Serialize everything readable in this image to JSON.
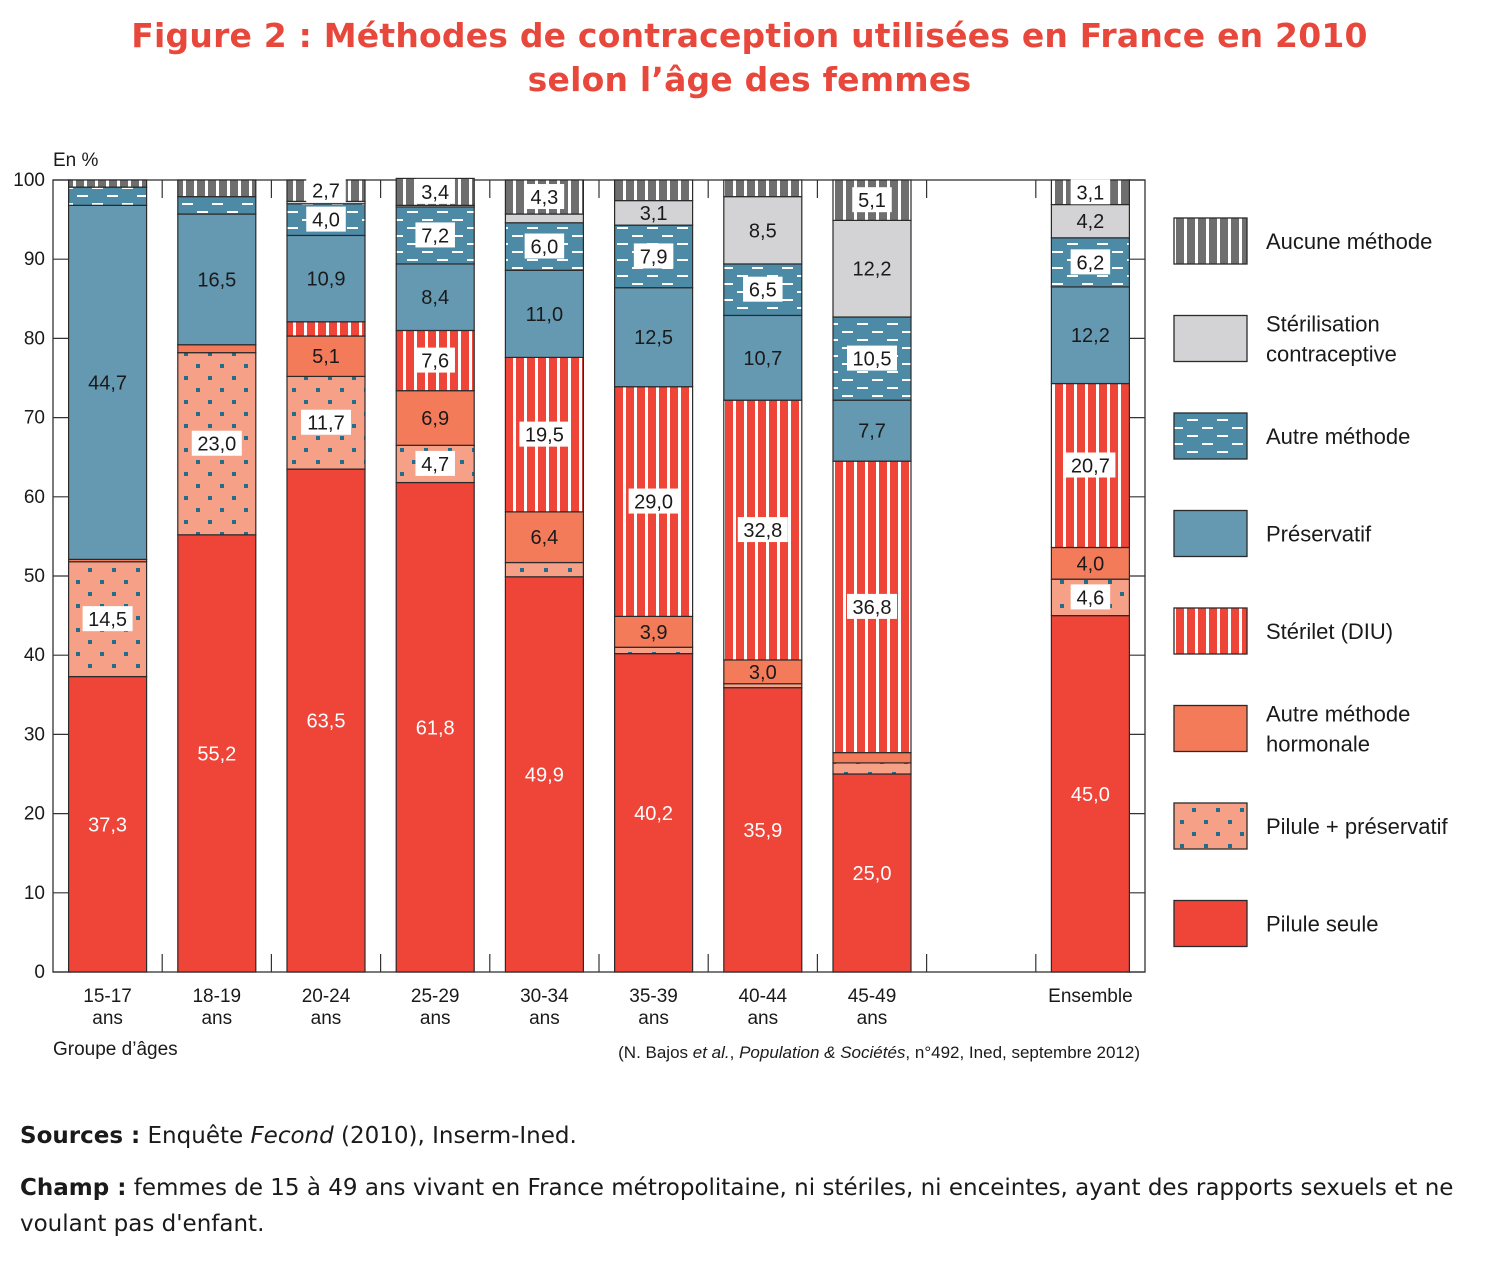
{
  "title_line1": "Figure 2 : Méthodes de contraception utilisées en France en 2010",
  "title_line2": "selon l’âge des femmes",
  "footer": {
    "sources_label": "Sources :",
    "sources_pre": " Enquête ",
    "sources_italic": "Fecond",
    "sources_post": " (2010), Inserm-Ined.",
    "champ_label": "Champ :",
    "champ_text": " femmes de 15 à 49 ans vivant en France métropolitaine, ni stériles, ni enceintes, ayant des rapports sexuels et ne voulant pas d'enfant."
  },
  "colors": {
    "pilule_seule": "#ef4438",
    "pilule_preservatif": "#f6a187",
    "autre_hormonale": "#f37b59",
    "sterilet": "#ef4438",
    "preservatif": "#6499b1",
    "autre_methode": "#4d8aa6",
    "sterilisation": "#d3d3d5",
    "aucune": "#6e6e6e",
    "title": "#e8473b"
  },
  "chart_data": {
    "type": "bar",
    "stacked": true,
    "title": "Figure 2 : Méthodes de contraception utilisées en France en 2010 selon l’âge des femmes",
    "ylabel": "En %",
    "xlabel": "Groupe d’âges",
    "ylim": [
      0,
      100
    ],
    "yticks": [
      0,
      10,
      20,
      30,
      40,
      50,
      60,
      70,
      80,
      90,
      100
    ],
    "grid": false,
    "legend_position": "right",
    "citation": "(N. Bajos et al., Population & Sociétés, n°492, Ined, septembre 2012)",
    "citation_parts": [
      "(N. Bajos ",
      "et al.",
      ", ",
      "Population & Sociétés",
      ", n°492, Ined, septembre 2012)"
    ],
    "categories": [
      {
        "line1": "15-17",
        "line2": "ans"
      },
      {
        "line1": "18-19",
        "line2": "ans"
      },
      {
        "line1": "20-24",
        "line2": "ans"
      },
      {
        "line1": "25-29",
        "line2": "ans"
      },
      {
        "line1": "30-34",
        "line2": "ans"
      },
      {
        "line1": "35-39",
        "line2": "ans"
      },
      {
        "line1": "40-44",
        "line2": "ans"
      },
      {
        "line1": "45-49",
        "line2": "ans"
      },
      null,
      {
        "line1": "Ensemble",
        "line2": ""
      }
    ],
    "series": [
      {
        "key": "pilule_seule",
        "name": "Pilule seule",
        "pattern": "solid",
        "values": [
          37.3,
          55.2,
          63.5,
          61.8,
          49.9,
          40.2,
          35.9,
          25.0,
          null,
          45.0
        ],
        "labels": [
          "37,3",
          "55,2",
          "63,5",
          "61,8",
          "49,9",
          "40,2",
          "35,9",
          "25,0",
          null,
          "45,0"
        ],
        "label_style": "white-text"
      },
      {
        "key": "pilule_preservatif",
        "name": "Pilule + préservatif",
        "pattern": "dots",
        "values": [
          14.5,
          23.0,
          11.7,
          4.7,
          1.8,
          0.8,
          0.5,
          1.4,
          null,
          4.6
        ],
        "labels": [
          "14,5",
          "23,0",
          "11,7",
          "4,7",
          null,
          null,
          null,
          null,
          null,
          "4,6"
        ],
        "label_style": "boxed"
      },
      {
        "key": "autre_hormonale",
        "name": "Autre méthode hormonale",
        "pattern": "solid",
        "values": [
          0.3,
          1.0,
          5.1,
          6.9,
          6.4,
          3.9,
          3.0,
          1.3,
          null,
          4.0
        ],
        "labels": [
          null,
          null,
          "5,1",
          "6,9",
          "6,4",
          "3,9",
          "3,0",
          null,
          null,
          "4,0"
        ],
        "label_style": "plain"
      },
      {
        "key": "sterilet",
        "name": "Stérilet (DIU)",
        "pattern": "vstripes-white",
        "values": [
          0.0,
          0.0,
          1.8,
          7.6,
          19.5,
          29.0,
          32.8,
          36.8,
          null,
          20.7
        ],
        "labels": [
          null,
          null,
          null,
          "7,6",
          "19,5",
          "29,0",
          "32,8",
          "36,8",
          null,
          "20,7"
        ],
        "label_style": "boxed"
      },
      {
        "key": "preservatif",
        "name": "Préservatif",
        "pattern": "solid",
        "values": [
          44.7,
          16.5,
          10.9,
          8.4,
          11.0,
          12.5,
          10.7,
          7.7,
          null,
          12.2
        ],
        "labels": [
          "44,7",
          "16,5",
          "10,9",
          "8,4",
          "11,0",
          "12,5",
          "10,7",
          "7,7",
          null,
          "12,2"
        ],
        "label_style": "plain"
      },
      {
        "key": "autre_methode",
        "name": "Autre méthode",
        "pattern": "dashes",
        "values": [
          2.3,
          2.2,
          4.0,
          7.2,
          6.0,
          7.9,
          6.5,
          10.5,
          null,
          6.2
        ],
        "labels": [
          null,
          null,
          "4,0",
          "7,2",
          "6,0",
          "7,9",
          "6,5",
          "10,5",
          null,
          "6,2"
        ],
        "label_style": "boxed"
      },
      {
        "key": "sterilisation",
        "name": "Stérilisation contraceptive",
        "pattern": "solid",
        "values": [
          0.0,
          0.0,
          0.3,
          0.2,
          1.1,
          3.1,
          8.5,
          12.2,
          null,
          4.2
        ],
        "labels": [
          null,
          null,
          null,
          null,
          null,
          "3,1",
          "8,5",
          "12,2",
          null,
          "4,2"
        ],
        "label_style": "plain"
      },
      {
        "key": "aucune",
        "name": "Aucune méthode",
        "pattern": "vstripes-grey",
        "values": [
          0.9,
          2.1,
          2.7,
          3.4,
          4.3,
          2.6,
          2.1,
          5.1,
          null,
          3.1
        ],
        "labels": [
          null,
          null,
          "2,7",
          "3,4",
          "4,3",
          null,
          null,
          "5,1",
          null,
          "3,1"
        ],
        "label_style": "boxed"
      }
    ],
    "legend_order": [
      {
        "name_lines": [
          "Aucune méthode"
        ],
        "key": "aucune"
      },
      {
        "name_lines": [
          "Stérilisation",
          "contraceptive"
        ],
        "key": "sterilisation"
      },
      {
        "name_lines": [
          "Autre méthode"
        ],
        "key": "autre_methode"
      },
      {
        "name_lines": [
          "Préservatif"
        ],
        "key": "preservatif"
      },
      {
        "name_lines": [
          "Stérilet (DIU)"
        ],
        "key": "sterilet"
      },
      {
        "name_lines": [
          "Autre méthode",
          "hormonale"
        ],
        "key": "autre_hormonale"
      },
      {
        "name_lines": [
          "Pilule + préservatif"
        ],
        "key": "pilule_preservatif"
      },
      {
        "name_lines": [
          "Pilule seule"
        ],
        "key": "pilule_seule"
      }
    ]
  }
}
